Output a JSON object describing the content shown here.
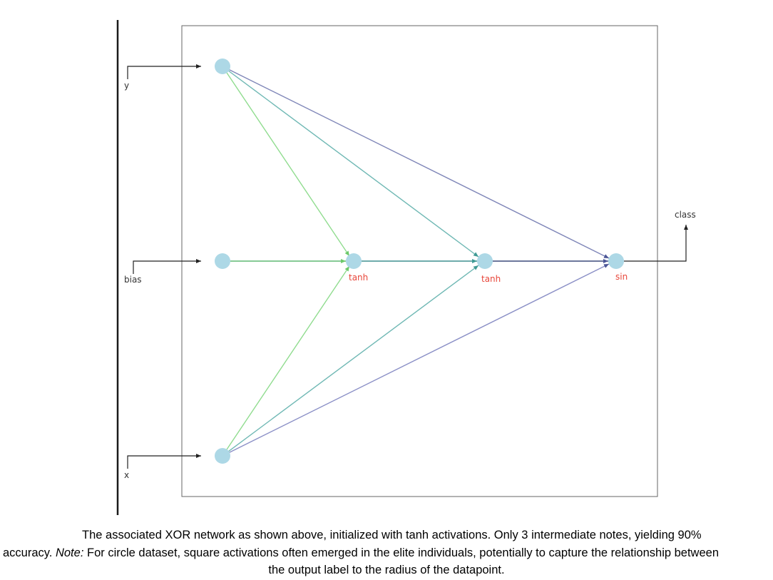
{
  "diagram": {
    "inputs": {
      "y": "y",
      "bias": "bias",
      "x": "x"
    },
    "output": "class",
    "activations": {
      "n1": "tanh",
      "n2": "tanh",
      "n3": "sin"
    },
    "colors": {
      "node": "#add8e6",
      "edge_green": "#90dc8f",
      "edge_teal": "#6fb8b4",
      "edge_blue": "#7f86b8",
      "edge_dark": "#3b4a7a",
      "activation_text": "#e8463a"
    }
  },
  "caption": {
    "line1": "The associated XOR network as shown above, initialized with tanh activations.   Only 3 intermediate notes, yielding 90%",
    "line2_start": "accuracy.  ",
    "note_label": "Note:",
    "line2_rest": " For circle dataset, square activations often emerged in the elite individuals, potentially to capture the relationship between",
    "line3": "the output label to the radius of the datapoint."
  }
}
